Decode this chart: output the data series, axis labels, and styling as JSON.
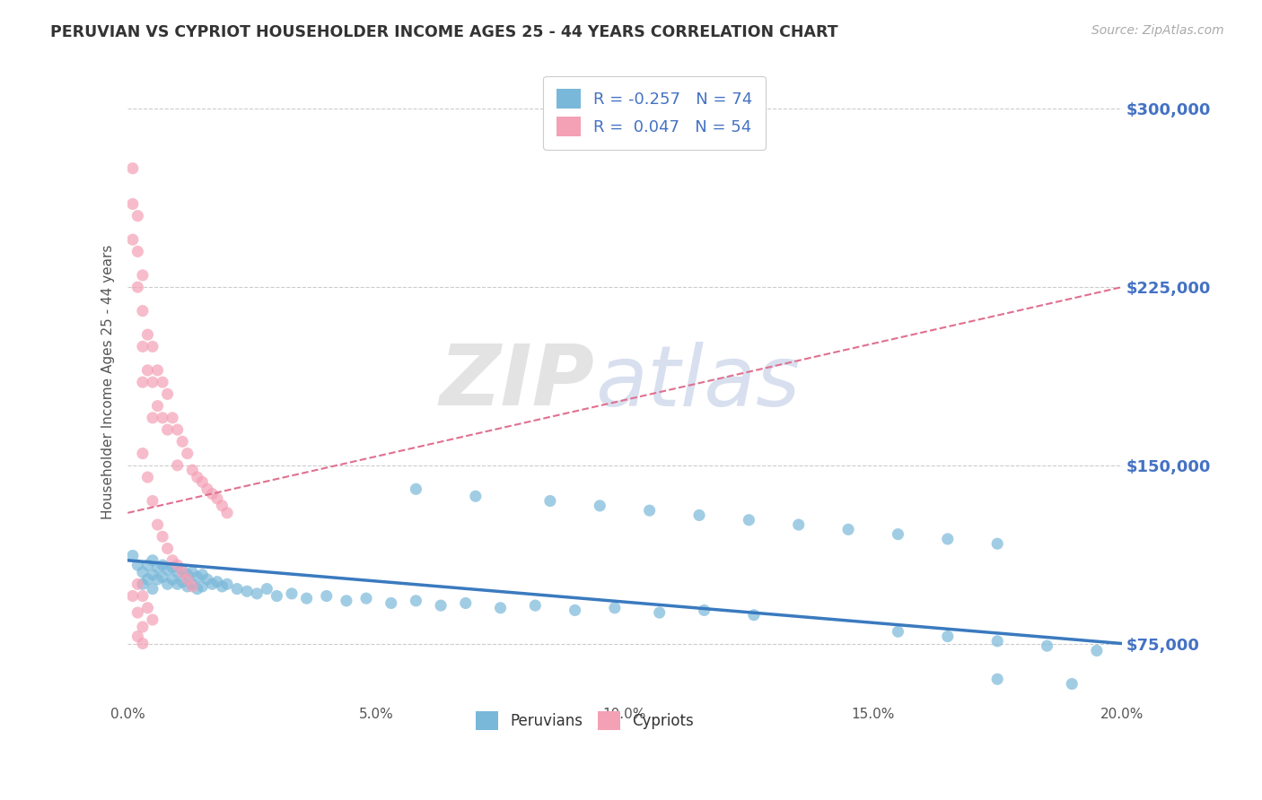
{
  "title": "PERUVIAN VS CYPRIOT HOUSEHOLDER INCOME AGES 25 - 44 YEARS CORRELATION CHART",
  "source": "Source: ZipAtlas.com",
  "ylabel": "Householder Income Ages 25 - 44 years",
  "xlim": [
    0.0,
    0.2
  ],
  "ylim": [
    50000,
    320000
  ],
  "yticks": [
    75000,
    150000,
    225000,
    300000
  ],
  "xticks": [
    0.0,
    0.05,
    0.1,
    0.15,
    0.2
  ],
  "xtick_labels": [
    "0.0%",
    "5.0%",
    "10.0%",
    "15.0%",
    "20.0%"
  ],
  "ytick_labels": [
    "$75,000",
    "$150,000",
    "$225,000",
    "$300,000"
  ],
  "peruvian_color": "#7ab8d9",
  "cypriot_color": "#f4a0b5",
  "trend_peruvian_color": "#3a7abf",
  "trend_cypriot_color": "#e07090",
  "legend_label_1": "R = -0.257   N = 74",
  "legend_label_2": "R =  0.047   N = 54",
  "legend_bottom_1": "Peruvians",
  "legend_bottom_2": "Cypriots",
  "watermark_zip": "ZIP",
  "watermark_atlas": "atlas",
  "background_color": "#ffffff",
  "peruvian_x": [
    0.001,
    0.002,
    0.003,
    0.003,
    0.004,
    0.004,
    0.005,
    0.005,
    0.005,
    0.006,
    0.006,
    0.007,
    0.007,
    0.008,
    0.008,
    0.009,
    0.009,
    0.01,
    0.01,
    0.011,
    0.011,
    0.012,
    0.012,
    0.013,
    0.013,
    0.014,
    0.014,
    0.015,
    0.015,
    0.016,
    0.017,
    0.018,
    0.019,
    0.02,
    0.022,
    0.024,
    0.026,
    0.028,
    0.03,
    0.033,
    0.036,
    0.04,
    0.044,
    0.048,
    0.053,
    0.058,
    0.063,
    0.068,
    0.075,
    0.082,
    0.09,
    0.098,
    0.107,
    0.116,
    0.126,
    0.058,
    0.07,
    0.085,
    0.095,
    0.105,
    0.115,
    0.125,
    0.135,
    0.145,
    0.155,
    0.165,
    0.175,
    0.155,
    0.165,
    0.175,
    0.185,
    0.195,
    0.175,
    0.19
  ],
  "peruvian_y": [
    112000,
    108000,
    105000,
    100000,
    108000,
    102000,
    110000,
    104000,
    98000,
    107000,
    102000,
    108000,
    103000,
    106000,
    100000,
    107000,
    102000,
    105000,
    100000,
    106000,
    101000,
    104000,
    99000,
    105000,
    100000,
    103000,
    98000,
    104000,
    99000,
    102000,
    100000,
    101000,
    99000,
    100000,
    98000,
    97000,
    96000,
    98000,
    95000,
    96000,
    94000,
    95000,
    93000,
    94000,
    92000,
    93000,
    91000,
    92000,
    90000,
    91000,
    89000,
    90000,
    88000,
    89000,
    87000,
    140000,
    137000,
    135000,
    133000,
    131000,
    129000,
    127000,
    125000,
    123000,
    121000,
    119000,
    117000,
    80000,
    78000,
    76000,
    74000,
    72000,
    60000,
    58000
  ],
  "cypriot_x": [
    0.001,
    0.001,
    0.001,
    0.002,
    0.002,
    0.002,
    0.003,
    0.003,
    0.003,
    0.003,
    0.004,
    0.004,
    0.005,
    0.005,
    0.005,
    0.006,
    0.006,
    0.007,
    0.007,
    0.008,
    0.008,
    0.009,
    0.01,
    0.01,
    0.011,
    0.012,
    0.013,
    0.014,
    0.015,
    0.016,
    0.017,
    0.018,
    0.019,
    0.02,
    0.003,
    0.004,
    0.005,
    0.006,
    0.007,
    0.008,
    0.009,
    0.01,
    0.011,
    0.012,
    0.013,
    0.002,
    0.003,
    0.004,
    0.005,
    0.001,
    0.002,
    0.003,
    0.002,
    0.003
  ],
  "cypriot_y": [
    275000,
    260000,
    245000,
    255000,
    240000,
    225000,
    230000,
    215000,
    200000,
    185000,
    205000,
    190000,
    200000,
    185000,
    170000,
    190000,
    175000,
    185000,
    170000,
    180000,
    165000,
    170000,
    165000,
    150000,
    160000,
    155000,
    148000,
    145000,
    143000,
    140000,
    138000,
    136000,
    133000,
    130000,
    155000,
    145000,
    135000,
    125000,
    120000,
    115000,
    110000,
    108000,
    105000,
    102000,
    99000,
    100000,
    95000,
    90000,
    85000,
    95000,
    88000,
    82000,
    78000,
    75000
  ]
}
